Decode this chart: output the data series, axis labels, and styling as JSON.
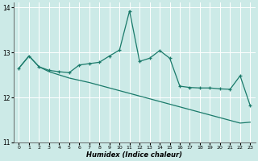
{
  "xlabel": "Humidex (Indice chaleur)",
  "bg_color": "#cceae7",
  "grid_color": "#ffffff",
  "line_color": "#1a7a6a",
  "xlim": [
    -0.5,
    23.5
  ],
  "ylim": [
    11,
    14.1
  ],
  "yticks": [
    11,
    12,
    13,
    14
  ],
  "xticks": [
    0,
    1,
    2,
    3,
    4,
    5,
    6,
    7,
    8,
    9,
    10,
    11,
    12,
    13,
    14,
    15,
    16,
    17,
    18,
    19,
    20,
    21,
    22,
    23
  ],
  "line1_x": [
    0,
    1,
    2,
    3,
    4,
    5,
    6,
    7,
    8,
    9,
    10,
    11,
    12,
    13,
    14,
    15,
    16,
    17,
    18,
    19,
    20,
    21,
    22,
    23
  ],
  "line1_y": [
    12.65,
    12.92,
    12.68,
    12.6,
    12.57,
    12.55,
    12.72,
    12.75,
    12.78,
    12.92,
    13.05,
    13.92,
    12.8,
    12.87,
    13.04,
    12.87,
    12.25,
    12.22,
    12.21,
    12.21,
    12.19,
    12.18,
    12.48,
    11.82
  ],
  "line2_x": [
    0,
    1,
    2,
    3,
    4,
    5,
    6,
    7,
    8,
    9,
    10,
    11,
    12,
    13,
    14,
    15,
    16,
    17,
    18,
    19,
    20,
    21,
    22,
    23
  ],
  "line2_y": [
    12.65,
    12.92,
    12.68,
    12.57,
    12.5,
    12.43,
    12.38,
    12.33,
    12.27,
    12.21,
    12.15,
    12.09,
    12.03,
    11.97,
    11.91,
    11.85,
    11.79,
    11.73,
    11.67,
    11.61,
    11.55,
    11.49,
    11.43,
    11.45
  ]
}
